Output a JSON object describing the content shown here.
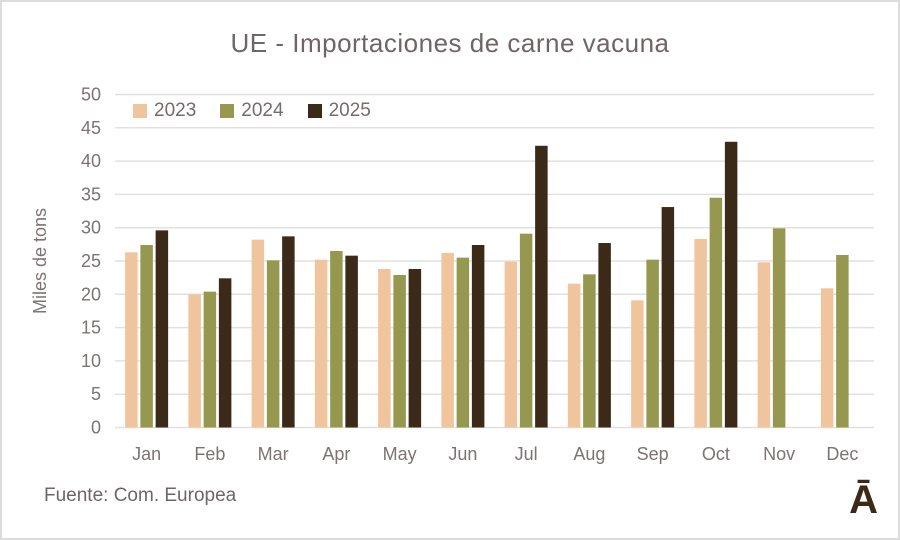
{
  "chart_data": {
    "type": "bar",
    "title": "UE - Importaciones de carne vacuna",
    "ylabel": "Miles de tons",
    "xlabel": "",
    "categories": [
      "Jan",
      "Feb",
      "Mar",
      "Apr",
      "May",
      "Jun",
      "Jul",
      "Aug",
      "Sep",
      "Oct",
      "Nov",
      "Dec"
    ],
    "y_ticks": [
      0,
      5,
      10,
      15,
      20,
      25,
      30,
      35,
      40,
      45,
      50
    ],
    "ylim": [
      0,
      50
    ],
    "grid": "horizontal",
    "legend_position": "top-left-inside",
    "series": [
      {
        "name": "2023",
        "color": "#f0c59d",
        "values": [
          26.3,
          20.0,
          28.2,
          25.2,
          23.8,
          26.2,
          24.9,
          21.6,
          19.1,
          28.3,
          24.8,
          20.9
        ]
      },
      {
        "name": "2024",
        "color": "#97984f",
        "values": [
          27.4,
          20.4,
          25.1,
          26.5,
          22.9,
          25.5,
          29.1,
          23.0,
          25.2,
          34.5,
          29.9,
          25.9
        ]
      },
      {
        "name": "2025",
        "color": "#3c2a18",
        "values": [
          29.6,
          22.4,
          28.7,
          25.8,
          23.8,
          27.4,
          42.3,
          27.7,
          33.1,
          42.9,
          null,
          null
        ]
      }
    ]
  },
  "footer": {
    "source": "Fuente: Com. Europea",
    "logo": "Ā"
  },
  "colors": {
    "grid": "#e2e0e0",
    "axis_text": "#7c7373",
    "title_text": "#6f6566",
    "frame_border": "#dcdcdc",
    "logo": "#3c2a18"
  }
}
